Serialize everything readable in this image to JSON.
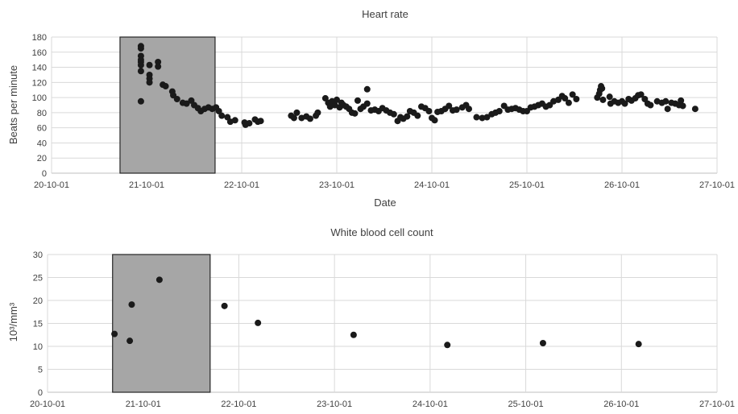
{
  "chart_data": [
    {
      "type": "scatter",
      "title": "Heart rate",
      "xlabel": "Date",
      "ylabel": "Beats per minute",
      "x_ticks": [
        "20-10-01",
        "21-10-01",
        "22-10-01",
        "23-10-01",
        "24-10-01",
        "25-10-01",
        "26-10-01",
        "27-10-01"
      ],
      "y_ticks": [
        "0",
        "20",
        "40",
        "60",
        "80",
        "100",
        "120",
        "140",
        "160",
        "180"
      ],
      "xlim": [
        0,
        7
      ],
      "ylim": [
        0,
        180
      ],
      "grid": true,
      "highlight_range": [
        0.72,
        1.72
      ],
      "series": [
        {
          "points": [
            [
              0.94,
              168
            ],
            [
              0.94,
              165
            ],
            [
              0.94,
              155
            ],
            [
              0.94,
              150
            ],
            [
              0.94,
              147
            ],
            [
              0.94,
              143
            ],
            [
              0.94,
              135
            ],
            [
              0.94,
              95
            ],
            [
              1.03,
              143
            ],
            [
              1.03,
              130
            ],
            [
              1.03,
              125
            ],
            [
              1.03,
              120
            ],
            [
              1.12,
              147
            ],
            [
              1.12,
              141
            ],
            [
              1.17,
              117
            ],
            [
              1.2,
              115
            ],
            [
              1.27,
              108
            ],
            [
              1.28,
              103
            ],
            [
              1.32,
              98
            ],
            [
              1.38,
              93
            ],
            [
              1.42,
              92
            ],
            [
              1.47,
              96
            ],
            [
              1.5,
              90
            ],
            [
              1.54,
              86
            ],
            [
              1.57,
              82
            ],
            [
              1.61,
              85
            ],
            [
              1.65,
              87
            ],
            [
              1.69,
              85
            ],
            [
              1.73,
              87
            ],
            [
              1.76,
              82
            ],
            [
              1.79,
              76
            ],
            [
              1.85,
              74
            ],
            [
              1.88,
              68
            ],
            [
              1.93,
              70
            ],
            [
              2.03,
              67
            ],
            [
              2.04,
              64
            ],
            [
              2.08,
              66
            ],
            [
              2.14,
              71
            ],
            [
              2.17,
              68
            ],
            [
              2.2,
              69
            ],
            [
              2.52,
              76
            ],
            [
              2.55,
              73
            ],
            [
              2.58,
              80
            ],
            [
              2.63,
              73
            ],
            [
              2.68,
              75
            ],
            [
              2.72,
              72
            ],
            [
              2.78,
              76
            ],
            [
              2.8,
              80
            ],
            [
              2.88,
              99
            ],
            [
              2.91,
              93
            ],
            [
              2.93,
              88
            ],
            [
              2.95,
              95
            ],
            [
              2.98,
              90
            ],
            [
              3.0,
              97
            ],
            [
              3.03,
              87
            ],
            [
              3.05,
              93
            ],
            [
              3.07,
              90
            ],
            [
              3.1,
              88
            ],
            [
              3.13,
              85
            ],
            [
              3.16,
              80
            ],
            [
              3.19,
              79
            ],
            [
              3.22,
              96
            ],
            [
              3.25,
              85
            ],
            [
              3.28,
              88
            ],
            [
              3.32,
              92
            ],
            [
              3.32,
              111
            ],
            [
              3.36,
              83
            ],
            [
              3.4,
              84
            ],
            [
              3.44,
              82
            ],
            [
              3.48,
              86
            ],
            [
              3.52,
              83
            ],
            [
              3.56,
              80
            ],
            [
              3.6,
              78
            ],
            [
              3.64,
              69
            ],
            [
              3.67,
              74
            ],
            [
              3.7,
              72
            ],
            [
              3.74,
              75
            ],
            [
              3.77,
              82
            ],
            [
              3.81,
              80
            ],
            [
              3.85,
              76
            ],
            [
              3.89,
              88
            ],
            [
              3.93,
              86
            ],
            [
              3.97,
              82
            ],
            [
              4.0,
              73
            ],
            [
              4.03,
              70
            ],
            [
              4.06,
              81
            ],
            [
              4.1,
              82
            ],
            [
              4.14,
              85
            ],
            [
              4.18,
              89
            ],
            [
              4.22,
              83
            ],
            [
              4.26,
              84
            ],
            [
              4.32,
              87
            ],
            [
              4.36,
              90
            ],
            [
              4.39,
              85
            ],
            [
              4.47,
              74
            ],
            [
              4.53,
              73
            ],
            [
              4.58,
              74
            ],
            [
              4.63,
              78
            ],
            [
              4.67,
              80
            ],
            [
              4.71,
              82
            ],
            [
              4.76,
              89
            ],
            [
              4.8,
              84
            ],
            [
              4.84,
              85
            ],
            [
              4.88,
              86
            ],
            [
              4.92,
              84
            ],
            [
              4.96,
              82
            ],
            [
              5.0,
              82
            ],
            [
              5.04,
              87
            ],
            [
              5.08,
              88
            ],
            [
              5.12,
              90
            ],
            [
              5.16,
              92
            ],
            [
              5.2,
              88
            ],
            [
              5.24,
              90
            ],
            [
              5.28,
              95
            ],
            [
              5.33,
              97
            ],
            [
              5.37,
              102
            ],
            [
              5.4,
              99
            ],
            [
              5.44,
              93
            ],
            [
              5.48,
              104
            ],
            [
              5.52,
              98
            ],
            [
              5.74,
              100
            ],
            [
              5.76,
              105
            ],
            [
              5.77,
              110
            ],
            [
              5.78,
              115
            ],
            [
              5.79,
              112
            ],
            [
              5.8,
              97
            ],
            [
              5.87,
              101
            ],
            [
              5.88,
              92
            ],
            [
              5.92,
              95
            ],
            [
              5.96,
              93
            ],
            [
              6.0,
              95
            ],
            [
              6.03,
              92
            ],
            [
              6.07,
              98
            ],
            [
              6.1,
              96
            ],
            [
              6.14,
              99
            ],
            [
              6.17,
              103
            ],
            [
              6.2,
              104
            ],
            [
              6.24,
              98
            ],
            [
              6.27,
              92
            ],
            [
              6.3,
              90
            ],
            [
              6.37,
              95
            ],
            [
              6.42,
              93
            ],
            [
              6.46,
              95
            ],
            [
              6.48,
              85
            ],
            [
              6.52,
              93
            ],
            [
              6.56,
              92
            ],
            [
              6.6,
              90
            ],
            [
              6.62,
              96
            ],
            [
              6.64,
              89
            ],
            [
              6.77,
              85
            ]
          ]
        }
      ]
    },
    {
      "type": "scatter",
      "title": "White blood cell count",
      "ylabel": "10³/mm³",
      "x_ticks": [
        "20-10-01",
        "21-10-01",
        "22-10-01",
        "23-10-01",
        "24-10-01",
        "25-10-01",
        "26-10-01",
        "27-10-01"
      ],
      "y_ticks": [
        "0",
        "5",
        "10",
        "15",
        "20",
        "25",
        "30"
      ],
      "xlim": [
        0,
        7
      ],
      "ylim": [
        0,
        30
      ],
      "grid": true,
      "highlight_range": [
        0.68,
        1.7
      ],
      "series": [
        {
          "points": [
            [
              0.7,
              12.7
            ],
            [
              0.86,
              11.2
            ],
            [
              0.88,
              19.1
            ],
            [
              1.17,
              24.5
            ],
            [
              1.85,
              18.8
            ],
            [
              2.2,
              15.1
            ],
            [
              3.2,
              12.5
            ],
            [
              4.18,
              10.3
            ],
            [
              5.18,
              10.7
            ],
            [
              6.18,
              10.5
            ]
          ]
        }
      ]
    }
  ]
}
